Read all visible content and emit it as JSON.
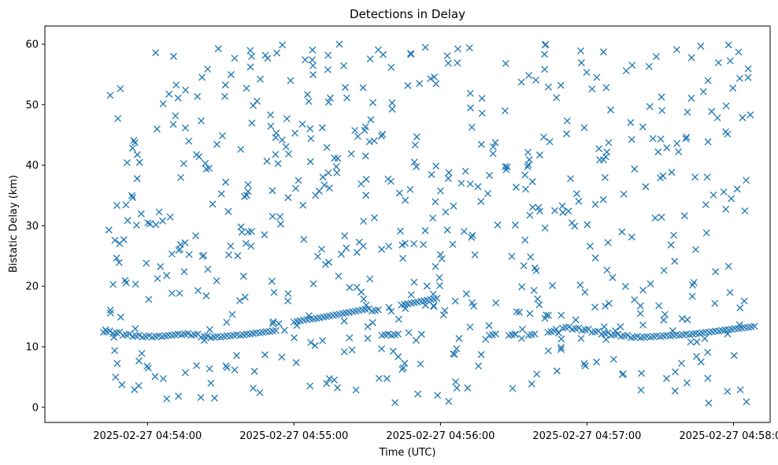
{
  "chart_data": {
    "type": "scatter",
    "title": "Detections in Delay",
    "xlabel": "Time (UTC)",
    "ylabel": "Bistatic Delay (km)",
    "xlim": [
      "2025-02-27 04:53:18",
      "2025-02-27 04:58:15"
    ],
    "ylim": [
      -2.5,
      63
    ],
    "x_ticks": [
      "2025-02-27 04:54:00",
      "2025-02-27 04:55:00",
      "2025-02-27 04:56:00",
      "2025-02-27 04:57:00",
      "2025-02-27 04:58:00"
    ],
    "y_ticks": [
      0,
      10,
      20,
      30,
      40,
      50,
      60
    ],
    "marker": "x",
    "color": "#1f77b4",
    "grid": false,
    "track_series": [
      {
        "x": [
          "2025-02-27 04:53:42",
          "2025-02-27 04:53:46",
          "2025-02-27 04:53:50",
          "2025-02-27 04:53:54",
          "2025-02-27 04:53:58",
          "2025-02-27 04:54:02",
          "2025-02-27 04:54:06",
          "2025-02-27 04:54:10",
          "2025-02-27 04:54:14",
          "2025-02-27 04:54:18",
          "2025-02-27 04:54:22",
          "2025-02-27 04:54:26",
          "2025-02-27 04:54:30",
          "2025-02-27 04:54:34",
          "2025-02-27 04:54:38",
          "2025-02-27 04:54:42",
          "2025-02-27 04:54:46",
          "2025-02-27 04:54:50"
        ],
        "y": [
          12.5,
          12.3,
          12.0,
          11.8,
          11.7,
          11.7,
          11.8,
          12.0,
          12.1,
          12.0,
          11.7,
          11.6,
          11.7,
          11.9,
          12.0,
          12.2,
          12.4,
          12.6
        ]
      },
      {
        "x": [
          "2025-02-27 04:55:00",
          "2025-02-27 04:55:04",
          "2025-02-27 04:55:08",
          "2025-02-27 04:55:12",
          "2025-02-27 04:55:16",
          "2025-02-27 04:55:20",
          "2025-02-27 04:55:24",
          "2025-02-27 04:55:28",
          "2025-02-27 04:55:32",
          "2025-02-27 04:55:36",
          "2025-02-27 04:55:40",
          "2025-02-27 04:55:44",
          "2025-02-27 04:55:48",
          "2025-02-27 04:55:52",
          "2025-02-27 04:55:56"
        ],
        "y": [
          14.2,
          14.5,
          14.7,
          15.0,
          15.3,
          15.6,
          15.9,
          16.2,
          16.0,
          12.0,
          12.0,
          17.0,
          17.3,
          17.6,
          17.9
        ]
      },
      {
        "x": [
          "2025-02-27 04:56:20",
          "2025-02-27 04:56:28",
          "2025-02-27 04:56:36",
          "2025-02-27 04:56:44",
          "2025-02-27 04:56:50",
          "2025-02-27 04:56:54",
          "2025-02-27 04:56:58",
          "2025-02-27 04:57:02",
          "2025-02-27 04:57:06",
          "2025-02-27 04:57:10",
          "2025-02-27 04:57:14"
        ],
        "y": [
          12.0,
          12.0,
          12.0,
          12.5,
          13.2,
          13.0,
          12.8,
          12.5,
          12.2,
          12.0,
          11.8
        ]
      },
      {
        "x": [
          "2025-02-27 04:57:18",
          "2025-02-27 04:57:22",
          "2025-02-27 04:57:26",
          "2025-02-27 04:57:30",
          "2025-02-27 04:57:34",
          "2025-02-27 04:57:38",
          "2025-02-27 04:57:42",
          "2025-02-27 04:57:46",
          "2025-02-27 04:57:50",
          "2025-02-27 04:57:54",
          "2025-02-27 04:57:58",
          "2025-02-27 04:58:02",
          "2025-02-27 04:58:06"
        ],
        "y": [
          11.6,
          11.6,
          11.7,
          11.8,
          11.9,
          12.0,
          12.1,
          12.3,
          12.5,
          12.7,
          12.9,
          13.1,
          13.3
        ]
      }
    ],
    "background_points": {
      "count": 620,
      "y_range": [
        0.5,
        60
      ],
      "x_range": [
        "2025-02-27 04:53:42",
        "2025-02-27 04:58:07"
      ]
    }
  }
}
